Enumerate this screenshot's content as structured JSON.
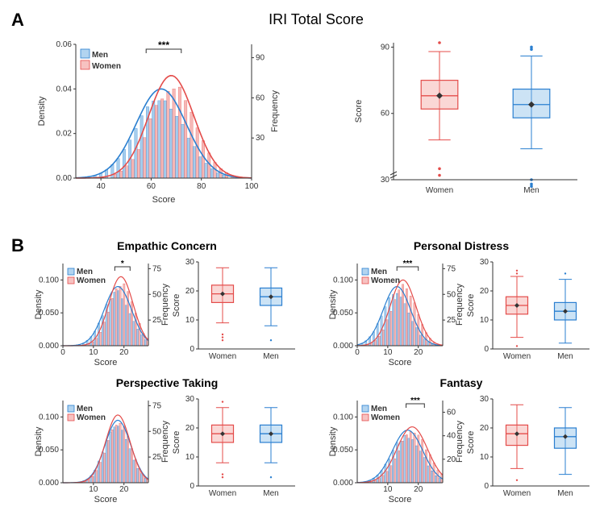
{
  "colors": {
    "men_fill": "#7fb8e6",
    "men_stroke": "#2a7fd0",
    "women_fill": "#f29a97",
    "women_stroke": "#e44c4a",
    "axis": "#333333",
    "bg": "#ffffff",
    "diamond": "#333333"
  },
  "legend": {
    "men": "Men",
    "women": "Women"
  },
  "panelA": {
    "label": "A",
    "title": "IRI Total Score",
    "hist": {
      "type": "histogram+density",
      "xlabel": "Score",
      "ylabel_left": "Density",
      "ylabel_right": "Frequency",
      "xlim": [
        30,
        100
      ],
      "xticks": [
        40,
        60,
        80,
        100
      ],
      "ylim_density": [
        0,
        0.06
      ],
      "yticks_density": [
        0.0,
        0.02,
        0.04,
        0.06
      ],
      "ylim_freq": [
        0,
        100
      ],
      "yticks_freq": [
        30,
        60,
        90
      ],
      "sig": "***",
      "sig_pos": [
        58,
        72
      ],
      "men": {
        "mean": 64,
        "sd": 10,
        "peak": 0.04
      },
      "women": {
        "mean": 68,
        "sd": 9,
        "peak": 0.046
      }
    },
    "box": {
      "type": "boxplot",
      "ylabel": "Score",
      "ylim": [
        30,
        92
      ],
      "yticks": [
        30,
        60,
        90
      ],
      "categories": [
        "Women",
        "Men"
      ],
      "women": {
        "q1": 62,
        "med": 68,
        "q3": 75,
        "lo": 48,
        "hi": 88,
        "outliers": [
          92,
          35,
          32
        ]
      },
      "men": {
        "q1": 58,
        "med": 64,
        "q3": 71,
        "lo": 44,
        "hi": 86,
        "outliers": [
          90,
          89,
          30,
          28,
          27
        ]
      }
    }
  },
  "panelB": {
    "label": "B",
    "subpanels": [
      {
        "title": "Empathic Concern",
        "hist": {
          "xlabel": "Score",
          "ylabel_left": "Density",
          "ylabel_right": "Frequency",
          "xlim": [
            0,
            28
          ],
          "xticks": [
            0,
            10,
            20
          ],
          "ylim_density": [
            0,
            0.125
          ],
          "yticks_density": [
            0.0,
            0.05,
            0.1
          ],
          "ylim_freq": [
            0,
            80
          ],
          "yticks_freq": [
            25,
            50,
            75
          ],
          "sig": "*",
          "sig_pos": [
            17,
            22
          ],
          "men": {
            "mean": 18,
            "sd": 4.5,
            "peak": 0.09
          },
          "women": {
            "mean": 19,
            "sd": 4.0,
            "peak": 0.105
          }
        },
        "box": {
          "ylabel": "Score",
          "ylim": [
            0,
            30
          ],
          "yticks": [
            0,
            10,
            20,
            30
          ],
          "categories": [
            "Women",
            "Men"
          ],
          "women": {
            "q1": 16,
            "med": 19,
            "q3": 22,
            "lo": 9,
            "hi": 28,
            "outliers": [
              5,
              4,
              3
            ]
          },
          "men": {
            "q1": 15,
            "med": 18,
            "q3": 21,
            "lo": 8,
            "hi": 28,
            "outliers": [
              3
            ]
          }
        }
      },
      {
        "title": "Personal Distress",
        "hist": {
          "xlabel": "Score",
          "ylabel_left": "Density",
          "ylabel_right": "Frequency",
          "xlim": [
            0,
            28
          ],
          "xticks": [
            0,
            10,
            20
          ],
          "ylim_density": [
            0,
            0.125
          ],
          "yticks_density": [
            0.0,
            0.05,
            0.1
          ],
          "ylim_freq": [
            0,
            80
          ],
          "yticks_freq": [
            25,
            50,
            75
          ],
          "sig": "***",
          "sig_pos": [
            13,
            20
          ],
          "men": {
            "mean": 13,
            "sd": 4.5,
            "peak": 0.09
          },
          "women": {
            "mean": 15,
            "sd": 4.2,
            "peak": 0.1
          }
        },
        "box": {
          "ylabel": "Score",
          "ylim": [
            0,
            30
          ],
          "yticks": [
            0,
            10,
            20,
            30
          ],
          "categories": [
            "Women",
            "Men"
          ],
          "women": {
            "q1": 12,
            "med": 15,
            "q3": 18,
            "lo": 4,
            "hi": 25,
            "outliers": [
              27,
              26,
              1
            ]
          },
          "men": {
            "q1": 10,
            "med": 13,
            "q3": 16,
            "lo": 2,
            "hi": 24,
            "outliers": [
              26
            ]
          }
        }
      },
      {
        "title": "Perspective Taking",
        "hist": {
          "xlabel": "Score",
          "ylabel_left": "Density",
          "ylabel_right": "Frequency",
          "xlim": [
            0,
            28
          ],
          "xticks": [
            10,
            20
          ],
          "ylim_density": [
            0,
            0.125
          ],
          "yticks_density": [
            0.0,
            0.05,
            0.1
          ],
          "ylim_freq": [
            0,
            80
          ],
          "yticks_freq": [
            25,
            50,
            75
          ],
          "sig": null,
          "sig_pos": [
            0,
            0
          ],
          "men": {
            "mean": 18,
            "sd": 4.2,
            "peak": 0.095
          },
          "women": {
            "mean": 18,
            "sd": 4.0,
            "peak": 0.103
          }
        },
        "box": {
          "ylabel": "Score",
          "ylim": [
            0,
            30
          ],
          "yticks": [
            0,
            10,
            20,
            30
          ],
          "categories": [
            "Women",
            "Men"
          ],
          "women": {
            "q1": 15,
            "med": 18,
            "q3": 21,
            "lo": 8,
            "hi": 27,
            "outliers": [
              29,
              4,
              3
            ]
          },
          "men": {
            "q1": 15,
            "med": 18,
            "q3": 21,
            "lo": 8,
            "hi": 27,
            "outliers": [
              3
            ]
          }
        }
      },
      {
        "title": "Fantasy",
        "hist": {
          "xlabel": "Score",
          "ylabel_left": "Density",
          "ylabel_right": "Frequency",
          "xlim": [
            0,
            28
          ],
          "xticks": [
            10,
            20
          ],
          "ylim_density": [
            0,
            0.125
          ],
          "yticks_density": [
            0.0,
            0.05,
            0.1
          ],
          "ylim_freq": [
            0,
            70
          ],
          "yticks_freq": [
            20,
            40,
            60
          ],
          "sig": "***",
          "sig_pos": [
            16,
            22
          ],
          "men": {
            "mean": 16.5,
            "sd": 5.0,
            "peak": 0.08
          },
          "women": {
            "mean": 18,
            "sd": 5.0,
            "peak": 0.085
          }
        },
        "box": {
          "ylabel": "Score",
          "ylim": [
            0,
            30
          ],
          "yticks": [
            0,
            10,
            20,
            30
          ],
          "categories": [
            "Women",
            "Men"
          ],
          "women": {
            "q1": 14,
            "med": 18,
            "q3": 21,
            "lo": 6,
            "hi": 28,
            "outliers": [
              2
            ]
          },
          "men": {
            "q1": 13,
            "med": 17,
            "q3": 20,
            "lo": 4,
            "hi": 27,
            "outliers": []
          }
        }
      }
    ]
  }
}
